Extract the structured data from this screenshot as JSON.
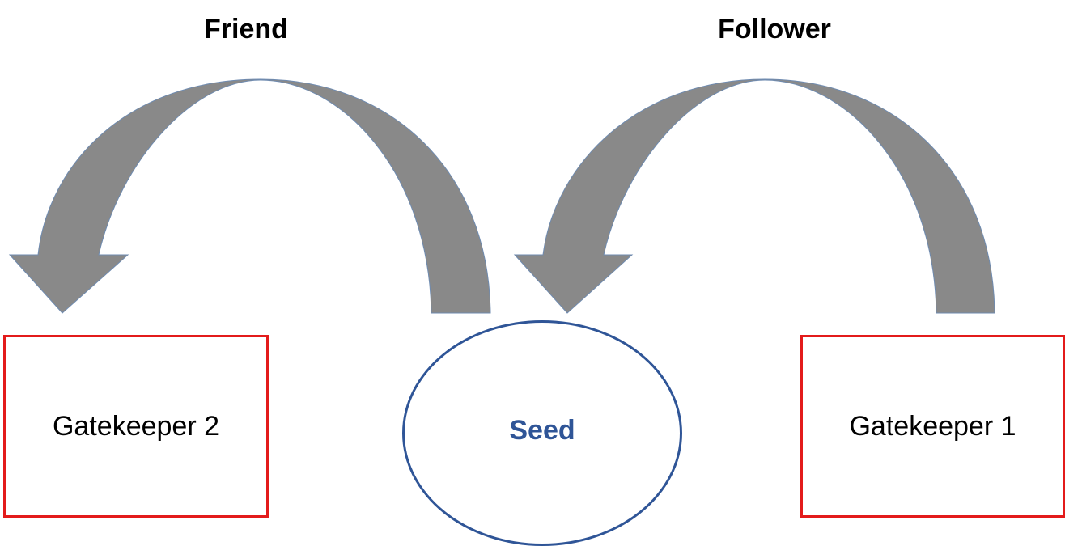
{
  "diagram": {
    "edges": [
      {
        "id": "friend",
        "label": "Friend",
        "from": "Seed",
        "to": "Gatekeeper 2"
      },
      {
        "id": "follower",
        "label": "Follower",
        "from": "Gatekeeper 1",
        "to": "Seed"
      }
    ],
    "nodes": {
      "gatekeeper_2": {
        "label": "Gatekeeper 2",
        "shape": "rectangle"
      },
      "seed": {
        "label": "Seed",
        "shape": "ellipse"
      },
      "gatekeeper_1": {
        "label": "Gatekeeper 1",
        "shape": "rectangle"
      }
    },
    "colors": {
      "arrow_fill": "#898989",
      "arrow_stroke": "#6f8bb0",
      "box_border": "#e31b1b",
      "seed_border": "#2f5597",
      "seed_text": "#2f5597",
      "text": "#000000"
    }
  }
}
